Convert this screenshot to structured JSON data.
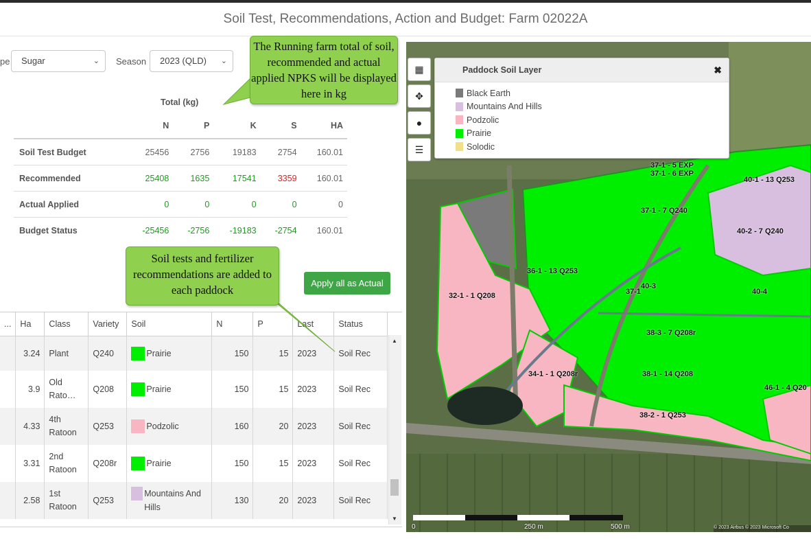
{
  "page": {
    "title": "Soil Test, Recommendations, Action and Budget: Farm 02022A"
  },
  "filters": {
    "type_label": "pe",
    "type_value": "Sugar",
    "season_label": "Season",
    "season_value": "2023 (QLD)"
  },
  "callouts": {
    "top": "The Running farm total of soil, recommended and actual applied NPKS will be displayed here in kg",
    "middle": "Soil tests and fertilizer recommendations are added to each paddock"
  },
  "budget": {
    "caption": "Total (kg)",
    "columns": [
      "N",
      "P",
      "K",
      "S",
      "HA"
    ],
    "rows": [
      {
        "label": "Soil Test Budget",
        "values": [
          "25456",
          "2756",
          "19183",
          "2754",
          "160.01"
        ]
      },
      {
        "label": "Recommended",
        "values": [
          "25408",
          "1635",
          "17541",
          "3359",
          "160.01"
        ]
      },
      {
        "label": "Actual Applied",
        "values": [
          "0",
          "0",
          "0",
          "0",
          "0"
        ]
      },
      {
        "label": "Budget Status",
        "values": [
          "-25456",
          "-2756",
          "-19183",
          "-2754",
          "160.01"
        ]
      }
    ]
  },
  "apply_button": "Apply all as Actual",
  "paddock_table": {
    "headers": [
      "...",
      "Ha",
      "Class",
      "Variety",
      "Soil",
      "N",
      "P",
      "Last",
      "Status"
    ],
    "rows": [
      {
        "ha": "3.24",
        "cls": "Plant",
        "variety": "Q240",
        "soil": "Prairie",
        "soil_color": "#00ee00",
        "n": "150",
        "p": "15",
        "last": "2023",
        "status": "Soil Rec"
      },
      {
        "ha": "3.9",
        "cls": "Old Rato…",
        "variety": "Q208",
        "soil": "Prairie",
        "soil_color": "#00ee00",
        "n": "150",
        "p": "15",
        "last": "2023",
        "status": "Soil Rec"
      },
      {
        "ha": "4.33",
        "cls": "4th Ratoon",
        "variety": "Q253",
        "soil": "Podzolic",
        "soil_color": "#f7b6c2",
        "n": "160",
        "p": "20",
        "last": "2023",
        "status": "Soil Rec"
      },
      {
        "ha": "3.31",
        "cls": "2nd Ratoon",
        "variety": "Q208r",
        "soil": "Prairie",
        "soil_color": "#00ee00",
        "n": "150",
        "p": "15",
        "last": "2023",
        "status": "Soil Rec"
      },
      {
        "ha": "2.58",
        "cls": "1st Ratoon",
        "variety": "Q253",
        "soil": "Mountains And Hills",
        "soil_color": "#d8bfe0",
        "n": "130",
        "p": "20",
        "last": "2023",
        "status": "Soil Rec"
      }
    ]
  },
  "map": {
    "legend_title": "Paddock Soil Layer",
    "legend_items": [
      {
        "name": "Black Earth",
        "color": "#7a7a7a"
      },
      {
        "name": "Mountains And Hills",
        "color": "#d8bfe0"
      },
      {
        "name": "Podzolic",
        "color": "#f7b6c2"
      },
      {
        "name": "Prairie",
        "color": "#00ee00"
      },
      {
        "name": "Solodic",
        "color": "#f0e08a"
      }
    ],
    "paddock_labels": [
      "37-1 - 5 EXP",
      "37-1 - 6 EXP",
      "40-1 - 13 Q253",
      "37-1 - 7 Q240",
      "40-2 - 7 Q240",
      "36-1 - 13 Q253",
      "40-3",
      "37-1",
      "40-4",
      "32-1 - 1 Q208",
      "38-3 - 7 Q208r",
      "34-1 - 1 Q208r",
      "38-1 - 14 Q208",
      "46-1 - 4 Q20",
      "38-2 - 1 Q253"
    ],
    "scale_labels": [
      "0",
      "250 m",
      "500 m"
    ],
    "attribution": "© 2023 Airbus © 2023 Microsoft Co"
  }
}
